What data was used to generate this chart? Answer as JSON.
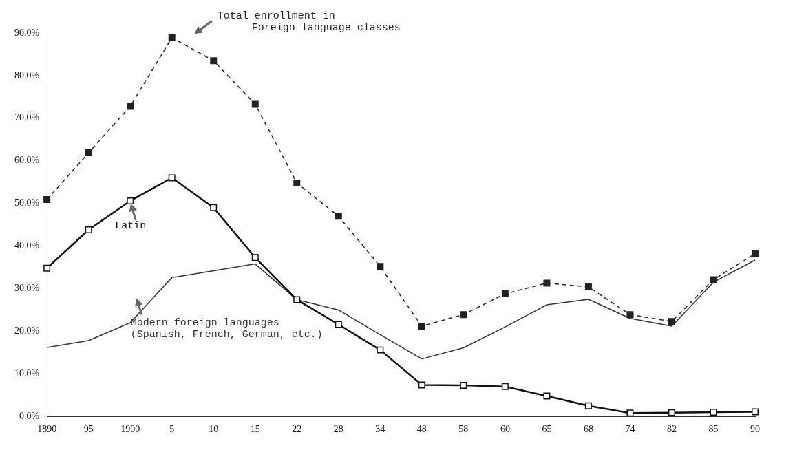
{
  "chart_data": {
    "type": "line",
    "categories": [
      "1890",
      "95",
      "1900",
      "5",
      "10",
      "15",
      "22",
      "28",
      "34",
      "48",
      "58",
      "60",
      "65",
      "68",
      "74",
      "82",
      "85",
      "90"
    ],
    "series": [
      {
        "name": "Total enrollment in\nForeign language classes",
        "color": "#222222",
        "marker": "square",
        "line_style": "dashed",
        "values": [
          50.9,
          61.9,
          72.8,
          88.9,
          83.5,
          73.3,
          54.8,
          47.0,
          35.2,
          21.2,
          23.9,
          28.8,
          31.3,
          30.4,
          23.9,
          22.3,
          32.1,
          38.2
        ]
      },
      {
        "name": "Latin",
        "color": "#111111",
        "marker": "square",
        "line_style": "solid",
        "values": [
          34.8,
          43.8,
          50.6,
          56.0,
          49.0,
          37.3,
          27.4,
          21.6,
          15.6,
          7.4,
          7.3,
          7.0,
          4.8,
          2.5,
          0.8,
          0.9,
          1.0,
          1.1
        ]
      },
      {
        "name": "Modern foreign languages\n(Spanish, French, German, etc.)",
        "color": "#333333",
        "marker": "none",
        "line_style": "solid",
        "values": [
          16.2,
          17.8,
          22.0,
          32.6,
          34.2,
          35.8,
          27.4,
          25.0,
          19.2,
          13.5,
          16.1,
          21.0,
          26.2,
          27.5,
          23.0,
          21.2,
          31.5,
          36.7
        ]
      }
    ],
    "ylim": [
      0,
      90
    ],
    "yticks": [
      {
        "value": 0,
        "label": "0.0%"
      },
      {
        "value": 10,
        "label": "10.0%"
      },
      {
        "value": 20,
        "label": "20.0%"
      },
      {
        "value": 30,
        "label": "30.0%"
      },
      {
        "value": 40,
        "label": "40.0%"
      },
      {
        "value": 50,
        "label": "50.0%"
      },
      {
        "value": 60,
        "label": "60.0%"
      },
      {
        "value": 70,
        "label": "70.0%"
      },
      {
        "value": 80,
        "label": "80.0%"
      },
      {
        "value": 90,
        "label": "90.0%"
      }
    ],
    "grid": false,
    "legend": false
  }
}
